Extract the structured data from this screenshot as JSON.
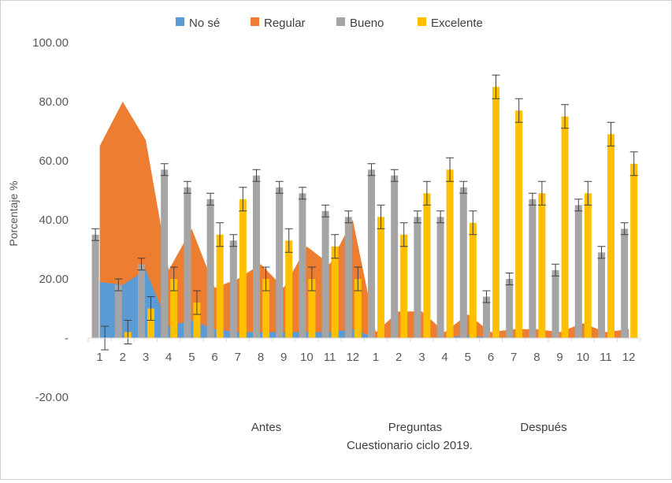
{
  "chart_data": {
    "type": "bar",
    "title": "",
    "xlabel": "Cuestionario ciclo 2019.",
    "ylabel": "Porcentaje %",
    "ylim": [
      -20,
      100
    ],
    "y_ticks": [
      "100.00",
      "80.00",
      "60.00",
      "40.00",
      "20.00",
      "-",
      "-20.00"
    ],
    "y_tick_values": [
      100,
      80,
      60,
      40,
      20,
      0,
      -20
    ],
    "group_labels": [
      "Antes",
      "Preguntas",
      "Después"
    ],
    "categories": [
      "1",
      "2",
      "3",
      "4",
      "5",
      "6",
      "7",
      "8",
      "9",
      "10",
      "11",
      "12",
      "1",
      "2",
      "3",
      "4",
      "5",
      "6",
      "7",
      "8",
      "9",
      "10",
      "11",
      "12"
    ],
    "legend": [
      "No sé",
      "Regular",
      "Bueno",
      "Excelente"
    ],
    "colors": {
      "no_se": "#5B9BD5",
      "regular": "#ED7D31",
      "bueno": "#A5A5A5",
      "excelente": "#FFC000"
    },
    "series": [
      {
        "name": "No sé",
        "kind": "area",
        "values": [
          19,
          18,
          23,
          4,
          6,
          3,
          2,
          2,
          2,
          2,
          2,
          3,
          0,
          0,
          0,
          0,
          1,
          0,
          0,
          0,
          0,
          0,
          0,
          0
        ]
      },
      {
        "name": "Regular",
        "kind": "area",
        "values": [
          65,
          80,
          67,
          23,
          37,
          17,
          20,
          25,
          17,
          31,
          25,
          40,
          2,
          9,
          9,
          2,
          8,
          2,
          3,
          3,
          2,
          5,
          2,
          3
        ]
      },
      {
        "name": "Bueno",
        "kind": "bar",
        "values": [
          35,
          18,
          25,
          57,
          51,
          47,
          33,
          55,
          51,
          49,
          43,
          41,
          57,
          55,
          41,
          41,
          51,
          14,
          20,
          47,
          23,
          45,
          29,
          37
        ],
        "error": [
          2,
          2,
          2,
          2,
          2,
          2,
          2,
          2,
          2,
          2,
          2,
          2,
          2,
          2,
          2,
          2,
          2,
          2,
          2,
          2,
          2,
          2,
          2,
          2
        ]
      },
      {
        "name": "Excelente",
        "kind": "bar",
        "values": [
          0,
          2,
          10,
          20,
          12,
          35,
          47,
          20,
          33,
          20,
          31,
          20,
          41,
          35,
          49,
          57,
          39,
          85,
          77,
          49,
          75,
          49,
          69,
          59
        ],
        "error": [
          4,
          4,
          4,
          4,
          4,
          4,
          4,
          4,
          4,
          4,
          4,
          4,
          4,
          4,
          4,
          4,
          4,
          4,
          4,
          4,
          4,
          4,
          4,
          4
        ]
      }
    ]
  }
}
